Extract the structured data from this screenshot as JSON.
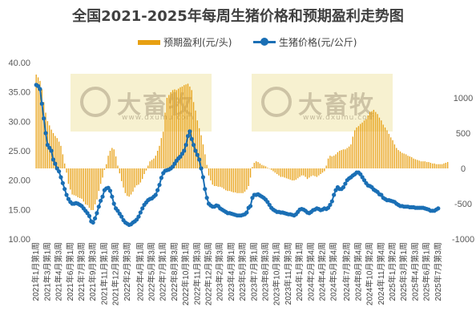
{
  "chart_data": {
    "type": "bar+line",
    "title": "全国2021-2025年每周生猪价格和预期盈利走势图",
    "legend_position": "top",
    "series": [
      {
        "name": "预期盈利(元/头)",
        "type": "bar",
        "axis": "right",
        "color": "#E8A012"
      },
      {
        "name": "生猪价格(元/公斤)",
        "type": "line",
        "axis": "left",
        "color": "#1A6FB5"
      }
    ],
    "left_axis": {
      "ylim": [
        10,
        40
      ],
      "ticks": [
        "10.00",
        "15.00",
        "20.00",
        "25.00",
        "30.00",
        "35.00",
        "40.00"
      ]
    },
    "right_axis": {
      "ylim": [
        -1000,
        1500
      ],
      "ticks": [
        "-1000",
        "-500",
        "0",
        "500",
        "1000"
      ]
    },
    "x_tick_labels": [
      "2021年1月第1周",
      "2021年3月第1周",
      "2021年4月第3周",
      "2021年6月第1周",
      "2021年7月第3周",
      "2021年9月第3周",
      "2021年11月第1周",
      "2021年12月第3周",
      "2022年2月第3周",
      "2022年4月第1周",
      "2022年5月第3周",
      "2022年7月第1周",
      "2022年8月第3周",
      "2022年10月第1周",
      "2022年11月第3周",
      "2022年12月第5周",
      "2023年2月第3周",
      "2023年4月第1周",
      "2023年5月第3周",
      "2023年7月第1周",
      "2023年8月第3周",
      "2023年10月第1周",
      "2023年11月第3周",
      "2024年1月第1周",
      "2024年2月第4周",
      "2024年4月第2周",
      "2024年5月第4周",
      "2024年7月第2周",
      "2024年8月第4周",
      "2024年10月第2周",
      "2024年11月第4周",
      "2025年1月第2周",
      "2025年3月第1周",
      "2025年4月第3周",
      "2025年6月第1周",
      "2025年7月第3周"
    ],
    "price": [
      36.2,
      36.0,
      35.5,
      33.0,
      30.5,
      28.0,
      26.0,
      25.5,
      25.0,
      23.5,
      22.8,
      22.0,
      21.5,
      20.5,
      19.5,
      18.5,
      17.5,
      16.8,
      16.3,
      16.0,
      16.0,
      16.1,
      16.0,
      15.8,
      15.6,
      15.2,
      14.8,
      14.4,
      13.9,
      13.0,
      12.8,
      13.5,
      14.4,
      15.5,
      16.5,
      17.2,
      18.3,
      18.6,
      18.7,
      18.2,
      17.2,
      16.0,
      15.2,
      14.8,
      14.3,
      13.8,
      13.2,
      12.8,
      12.6,
      12.4,
      12.5,
      12.8,
      13.0,
      13.3,
      13.8,
      14.5,
      15.2,
      15.8,
      16.2,
      16.6,
      16.8,
      16.9,
      17.2,
      17.5,
      18.3,
      19.2,
      20.4,
      21.2,
      21.6,
      21.7,
      21.8,
      22.0,
      22.3,
      22.8,
      23.3,
      23.7,
      24.0,
      24.5,
      25.0,
      26.0,
      27.5,
      28.3,
      27.0,
      26.0,
      25.0,
      24.3,
      23.5,
      22.0,
      20.5,
      18.5,
      17.0,
      16.0,
      15.7,
      15.5,
      15.5,
      15.7,
      15.6,
      15.2,
      15.0,
      14.8,
      14.6,
      14.4,
      14.4,
      14.3,
      14.2,
      14.1,
      14.0,
      14.0,
      14.0,
      14.1,
      14.2,
      14.5,
      15.3,
      15.6,
      17.0,
      17.5,
      17.5,
      17.6,
      17.4,
      17.2,
      17.0,
      16.7,
      16.3,
      15.8,
      15.3,
      15.0,
      14.8,
      14.6,
      14.6,
      14.5,
      14.5,
      14.4,
      14.3,
      14.2,
      14.2,
      14.1,
      14.0,
      14.2,
      14.6,
      15.0,
      15.1,
      15.0,
      14.8,
      14.5,
      14.4,
      14.6,
      14.9,
      15.0,
      15.2,
      15.1,
      14.9,
      15.0,
      15.2,
      15.1,
      15.3,
      15.8,
      16.4,
      17.5,
      18.3,
      18.8,
      18.5,
      18.5,
      18.8,
      19.4,
      20.0,
      20.3,
      20.5,
      20.8,
      21.0,
      21.3,
      21.3,
      21.0,
      20.5,
      20.0,
      19.5,
      19.1,
      19.0,
      18.8,
      18.4,
      18.2,
      18.0,
      17.6,
      17.5,
      17.0,
      16.8,
      16.6,
      16.6,
      16.5,
      16.4,
      16.3,
      16.0,
      15.8,
      15.6,
      15.6,
      15.5,
      15.5,
      15.5,
      15.4,
      15.4,
      15.4,
      15.3,
      15.3,
      15.3,
      15.3,
      15.3,
      15.2,
      15.1,
      15.0,
      14.8,
      14.8,
      14.8,
      15.0,
      15.2
    ],
    "profit": [
      1330,
      1290,
      1240,
      1120,
      940,
      790,
      670,
      610,
      550,
      500,
      460,
      430,
      380,
      320,
      200,
      70,
      -60,
      -220,
      -300,
      -370,
      -380,
      -390,
      -410,
      -420,
      -430,
      -470,
      -510,
      -520,
      -560,
      -590,
      -590,
      -510,
      -440,
      -320,
      -220,
      -130,
      -20,
      60,
      180,
      250,
      290,
      270,
      170,
      40,
      -70,
      -180,
      -270,
      -350,
      -390,
      -400,
      -370,
      -330,
      -270,
      -240,
      -230,
      -200,
      -150,
      -80,
      -30,
      40,
      100,
      120,
      140,
      180,
      250,
      320,
      430,
      520,
      790,
      1000,
      1040,
      1080,
      1110,
      1120,
      1110,
      1130,
      1150,
      1160,
      1180,
      1190,
      1200,
      1160,
      1110,
      940,
      820,
      680,
      570,
      470,
      340,
      200,
      50,
      -100,
      -170,
      -230,
      -250,
      -250,
      -260,
      -260,
      -270,
      -290,
      -310,
      -320,
      -320,
      -330,
      -340,
      -340,
      -350,
      -350,
      -350,
      -350,
      -330,
      -300,
      -250,
      -130,
      20,
      80,
      100,
      90,
      70,
      50,
      40,
      30,
      10,
      0,
      -20,
      -40,
      -60,
      -80,
      -100,
      -120,
      -120,
      -130,
      -140,
      -150,
      -160,
      -170,
      -170,
      -160,
      -140,
      -120,
      -100,
      -100,
      -120,
      -150,
      -130,
      -110,
      -100,
      -110,
      -120,
      -100,
      -80,
      -60,
      -40,
      40,
      140,
      180,
      170,
      180,
      200,
      230,
      250,
      260,
      270,
      270,
      290,
      310,
      340,
      450,
      540,
      580,
      600,
      630,
      650,
      680,
      700,
      750,
      800,
      810,
      830,
      800,
      770,
      720,
      680,
      620,
      580,
      540,
      490,
      440,
      400,
      340,
      290,
      260,
      240,
      220,
      210,
      200,
      180,
      170,
      160,
      140,
      130,
      120,
      110,
      100,
      100,
      100,
      90,
      90,
      80,
      70,
      70,
      60,
      60,
      60,
      60,
      70,
      80,
      90
    ]
  },
  "watermarks": [
    {
      "logo_text": "大畜牧",
      "url_text": "www.dxumu.com"
    },
    {
      "logo_text": "大畜牧",
      "url_text": "www.dxumu.com"
    }
  ]
}
